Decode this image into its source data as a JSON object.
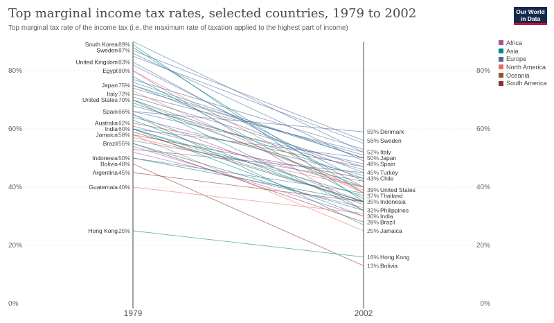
{
  "title": "Top marginal income tax rates, selected countries, 1979 to 2002",
  "subtitle": "Top marginal tax rate of the income tax (i.e. the maximum rate of taxation applied to the highest part of income)",
  "logo": {
    "line1": "Our World",
    "line2": "in Data"
  },
  "chart_data": {
    "type": "line",
    "x": [
      "1979",
      "2002"
    ],
    "ylim": [
      0,
      90
    ],
    "yticks": [
      "0%",
      "20%",
      "40%",
      "60%",
      "80%"
    ],
    "ytick_values": [
      0,
      20,
      40,
      60,
      80
    ],
    "legend": [
      {
        "name": "Africa",
        "color": "#a2559c"
      },
      {
        "name": "Asia",
        "color": "#00847e"
      },
      {
        "name": "Europe",
        "color": "#4c6a9c"
      },
      {
        "name": "North America",
        "color": "#e56e5a"
      },
      {
        "name": "Oceania",
        "color": "#9a5129"
      },
      {
        "name": "South America",
        "color": "#883039"
      }
    ],
    "start_labels": [
      {
        "name": "South Korea",
        "value": 89,
        "label": "89%"
      },
      {
        "name": "Sweden",
        "value": 87,
        "label": "87%"
      },
      {
        "name": "United Kingdom",
        "value": 83,
        "label": "83%"
      },
      {
        "name": "Egypt",
        "value": 80,
        "label": "80%"
      },
      {
        "name": "Japan",
        "value": 75,
        "label": "75%"
      },
      {
        "name": "Italy",
        "value": 72,
        "label": "72%"
      },
      {
        "name": "United States",
        "value": 70,
        "label": "70%"
      },
      {
        "name": "Spain",
        "value": 66,
        "label": "66%"
      },
      {
        "name": "Australia",
        "value": 62,
        "label": "62%"
      },
      {
        "name": "India",
        "value": 60,
        "label": "60%"
      },
      {
        "name": "Jamaica",
        "value": 58,
        "label": "58%"
      },
      {
        "name": "Brazil",
        "value": 55,
        "label": "55%"
      },
      {
        "name": "Indonesia",
        "value": 50,
        "label": "50%"
      },
      {
        "name": "Bolivia",
        "value": 48,
        "label": "48%"
      },
      {
        "name": "Argentina",
        "value": 45,
        "label": "45%"
      },
      {
        "name": "Guatemala",
        "value": 40,
        "label": "40%"
      },
      {
        "name": "Hong Kong",
        "value": 25,
        "label": "25%"
      }
    ],
    "end_labels": [
      {
        "name": "Denmark",
        "value": 59,
        "label": "59%"
      },
      {
        "name": "Sweden",
        "value": 56,
        "label": "56%"
      },
      {
        "name": "Italy",
        "value": 52,
        "label": "52%"
      },
      {
        "name": "Japan",
        "value": 50,
        "label": "50%"
      },
      {
        "name": "Spain",
        "value": 48,
        "label": "48%"
      },
      {
        "name": "Turkey",
        "value": 45,
        "label": "45%"
      },
      {
        "name": "Chile",
        "value": 43,
        "label": "43%"
      },
      {
        "name": "United States",
        "value": 39,
        "label": "39%"
      },
      {
        "name": "Thailand",
        "value": 37,
        "label": "37%"
      },
      {
        "name": "Indonesia",
        "value": 35,
        "label": "35%"
      },
      {
        "name": "Philippines",
        "value": 32,
        "label": "32%"
      },
      {
        "name": "India",
        "value": 30,
        "label": "30%"
      },
      {
        "name": "Brazil",
        "value": 28,
        "label": "28%"
      },
      {
        "name": "Jamaica",
        "value": 25,
        "label": "25%"
      },
      {
        "name": "Hong Kong",
        "value": 16,
        "label": "16%"
      },
      {
        "name": "Bolivia",
        "value": 13,
        "label": "13%"
      }
    ],
    "series": [
      {
        "region": "Asia",
        "values": [
          89,
          35
        ]
      },
      {
        "region": "Europe",
        "values": [
          87,
          56
        ]
      },
      {
        "region": "Europe",
        "values": [
          83,
          40
        ]
      },
      {
        "region": "Africa",
        "values": [
          80,
          32
        ]
      },
      {
        "region": "Asia",
        "values": [
          75,
          50
        ]
      },
      {
        "region": "Europe",
        "values": [
          72,
          52
        ]
      },
      {
        "region": "North America",
        "values": [
          70,
          39
        ]
      },
      {
        "region": "Europe",
        "values": [
          66,
          48
        ]
      },
      {
        "region": "Oceania",
        "values": [
          62,
          47
        ]
      },
      {
        "region": "Asia",
        "values": [
          60,
          30
        ]
      },
      {
        "region": "North America",
        "values": [
          58,
          25
        ]
      },
      {
        "region": "South America",
        "values": [
          55,
          28
        ]
      },
      {
        "region": "Asia",
        "values": [
          50,
          35
        ]
      },
      {
        "region": "South America",
        "values": [
          48,
          13
        ]
      },
      {
        "region": "South America",
        "values": [
          45,
          35
        ]
      },
      {
        "region": "North America",
        "values": [
          40,
          31
        ]
      },
      {
        "region": "Asia",
        "values": [
          25,
          16
        ]
      },
      {
        "region": "Europe",
        "values": [
          66,
          59
        ]
      },
      {
        "region": "Europe",
        "values": [
          75,
          45
        ]
      },
      {
        "region": "South America",
        "values": [
          58,
          43
        ]
      },
      {
        "region": "Asia",
        "values": [
          60,
          37
        ]
      },
      {
        "region": "Asia",
        "values": [
          70,
          32
        ]
      },
      {
        "region": "Europe",
        "values": [
          90,
          52
        ]
      },
      {
        "region": "Asia",
        "values": [
          88,
          38
        ]
      },
      {
        "region": "Europe",
        "values": [
          86,
          49
        ]
      },
      {
        "region": "Europe",
        "values": [
          85,
          55
        ]
      },
      {
        "region": "Europe",
        "values": [
          82,
          42
        ]
      },
      {
        "region": "Asia",
        "values": [
          78,
          36
        ]
      },
      {
        "region": "Europe",
        "values": [
          76,
          50
        ]
      },
      {
        "region": "Europe",
        "values": [
          74,
          51
        ]
      },
      {
        "region": "North America",
        "values": [
          73,
          38
        ]
      },
      {
        "region": "Europe",
        "values": [
          71,
          47
        ]
      },
      {
        "region": "Asia",
        "values": [
          69,
          40
        ]
      },
      {
        "region": "Europe",
        "values": [
          68,
          46
        ]
      },
      {
        "region": "Africa",
        "values": [
          65,
          35
        ]
      },
      {
        "region": "Europe",
        "values": [
          64,
          44
        ]
      },
      {
        "region": "Asia",
        "values": [
          63,
          34
        ]
      },
      {
        "region": "Africa",
        "values": [
          61,
          40
        ]
      },
      {
        "region": "Europe",
        "values": [
          60,
          50
        ]
      },
      {
        "region": "Asia",
        "values": [
          60,
          35
        ]
      },
      {
        "region": "South America",
        "values": [
          59,
          35
        ]
      },
      {
        "region": "North America",
        "values": [
          57,
          40
        ]
      },
      {
        "region": "Europe",
        "values": [
          56,
          42
        ]
      },
      {
        "region": "Asia",
        "values": [
          55,
          32
        ]
      },
      {
        "region": "Africa",
        "values": [
          54,
          30
        ]
      },
      {
        "region": "Europe",
        "values": [
          53,
          45
        ]
      },
      {
        "region": "Africa",
        "values": [
          52,
          33
        ]
      },
      {
        "region": "Europe",
        "values": [
          50,
          38
        ]
      },
      {
        "region": "Asia",
        "values": [
          65,
          27
        ]
      },
      {
        "region": "Asia",
        "values": [
          70,
          43
        ]
      },
      {
        "region": "North America",
        "values": [
          80,
          38
        ]
      },
      {
        "region": "Europe",
        "values": [
          77,
          53
        ]
      }
    ]
  }
}
